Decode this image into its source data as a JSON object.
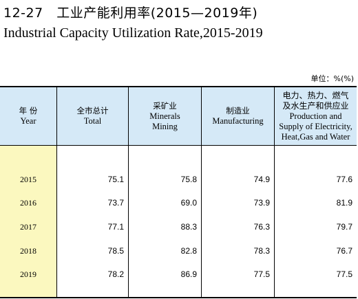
{
  "title": {
    "cn": "12-27　工业产能利用率(2015—2019年)",
    "en": "Industrial Capacity Utilization Rate,2015-2019"
  },
  "unit": "单位：%(%)",
  "table": {
    "headers": [
      {
        "cn": "年  份",
        "en": "Year"
      },
      {
        "cn": "全市总计",
        "en": "Total"
      },
      {
        "cn": "采矿业",
        "en": "Minerals\nMining"
      },
      {
        "cn": "制造业",
        "en": "Manufacturing"
      },
      {
        "cn": "电力、热力、燃气\n及水生产和供应业",
        "en": "Production and\nSupply of Electricity,\nHeat,Gas and Water"
      }
    ],
    "rows": [
      {
        "year": "2015",
        "total": "75.1",
        "mining": "75.8",
        "manufacturing": "74.9",
        "utilities": "77.6"
      },
      {
        "year": "2016",
        "total": "73.7",
        "mining": "69.0",
        "manufacturing": "73.9",
        "utilities": "81.9"
      },
      {
        "year": "2017",
        "total": "77.1",
        "mining": "88.3",
        "manufacturing": "76.3",
        "utilities": "79.7"
      },
      {
        "year": "2018",
        "total": "78.5",
        "mining": "82.8",
        "manufacturing": "78.3",
        "utilities": "76.7"
      },
      {
        "year": "2019",
        "total": "78.2",
        "mining": "86.9",
        "manufacturing": "77.5",
        "utilities": "77.5"
      }
    ]
  },
  "colors": {
    "header_bg": "#d5e9f7",
    "year_col_bg": "#fbf8bf"
  }
}
